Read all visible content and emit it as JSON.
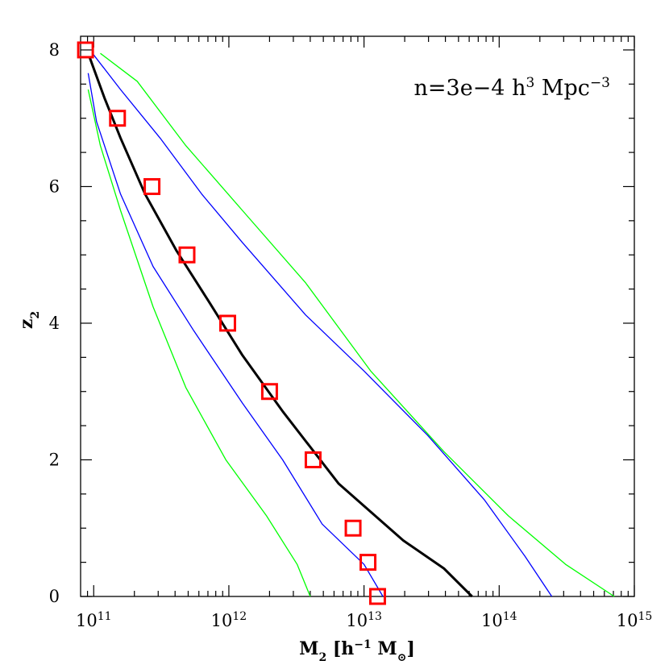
{
  "chart_data": {
    "type": "line",
    "xlabel": [
      {
        "text": "M"
      },
      {
        "text": "2",
        "script": "sub"
      },
      {
        "text": " [h"
      },
      {
        "text": "−1",
        "script": "sup"
      },
      {
        "text": " M"
      },
      {
        "text": "⊙",
        "script": "sub"
      },
      {
        "text": "]"
      }
    ],
    "ylabel": [
      {
        "text": "z"
      },
      {
        "text": "2",
        "script": "sub"
      }
    ],
    "annotation": [
      {
        "text": "n=3e−4 h"
      },
      {
        "text": "3",
        "script": "sup"
      },
      {
        "text": " Mpc"
      },
      {
        "text": "−3",
        "script": "sup"
      }
    ],
    "xscale": "log",
    "xlim": [
      80000000000,
      1000000000000000
    ],
    "ylim": [
      0,
      8.2
    ],
    "xticks": [
      {
        "value": 100000000000,
        "label": "10",
        "exponent": "11"
      },
      {
        "value": 1000000000000,
        "label": "10",
        "exponent": "12"
      },
      {
        "value": 10000000000000,
        "label": "10",
        "exponent": "13"
      },
      {
        "value": 100000000000000,
        "label": "10",
        "exponent": "14"
      },
      {
        "value": 1000000000000000,
        "label": "10",
        "exponent": "15"
      }
    ],
    "xminorticks": [
      90000000000,
      200000000000,
      300000000000,
      400000000000,
      500000000000,
      600000000000,
      700000000000,
      800000000000,
      900000000000,
      2000000000000,
      3000000000000,
      4000000000000,
      5000000000000,
      6000000000000,
      7000000000000,
      8000000000000,
      9000000000000,
      20000000000000,
      30000000000000,
      40000000000000,
      50000000000000,
      60000000000000,
      70000000000000,
      80000000000000,
      90000000000000,
      200000000000000,
      300000000000000,
      400000000000000,
      500000000000000,
      600000000000000,
      700000000000000,
      800000000000000,
      900000000000000
    ],
    "yticks": [
      0,
      2,
      4,
      6,
      8
    ],
    "yminorticks": [
      0.5,
      1,
      1.5,
      2.5,
      3,
      3.5,
      4.5,
      5,
      5.5,
      6.5,
      7,
      7.5
    ],
    "series": [
      {
        "color": "#00ff00",
        "width": 1.3,
        "x": [
          91000000000,
          112000000000,
          158000000000,
          275000000000,
          480000000000,
          950000000000,
          1900000000000,
          3200000000000,
          4000000000000
        ],
        "values": [
          7.42,
          6.6,
          5.65,
          4.24,
          3.06,
          2.0,
          1.18,
          0.47,
          0
        ]
      },
      {
        "color": "#0000ff",
        "width": 1.3,
        "x": [
          91000000000,
          105000000000,
          158000000000,
          275000000000,
          550000000000,
          1260000000000,
          2500000000000,
          4900000000000,
          10000000000000,
          13800000000000
        ],
        "values": [
          7.66,
          6.95,
          5.89,
          4.83,
          3.89,
          2.83,
          2.0,
          1.06,
          0.47,
          0
        ]
      },
      {
        "color": "#000000",
        "width": 3,
        "x": [
          93000000000,
          120000000000,
          158000000000,
          240000000000,
          410000000000,
          720000000000,
          1260000000000,
          2500000000000,
          6500000000000,
          19500000000000,
          39000000000000,
          63000000000000
        ],
        "values": [
          7.9,
          7.3,
          6.71,
          5.89,
          5.06,
          4.3,
          3.53,
          2.71,
          1.65,
          0.82,
          0.41,
          0
        ]
      },
      {
        "color": "#0000ff",
        "width": 1.3,
        "x": [
          98000000000,
          158000000000,
          310000000000,
          630000000000,
          1260000000000,
          3700000000000,
          10000000000000,
          29500000000000,
          78000000000000,
          155000000000000,
          245000000000000
        ],
        "values": [
          7.95,
          7.42,
          6.71,
          5.89,
          5.18,
          4.12,
          3.3,
          2.36,
          1.41,
          0.59,
          0
        ]
      },
      {
        "color": "#00ff00",
        "width": 1.3,
        "x": [
          112000000000,
          210000000000,
          480000000000,
          1260000000000,
          3700000000000,
          11200000000000,
          39000000000000,
          117000000000000,
          310000000000000,
          710000000000000
        ],
        "values": [
          7.95,
          7.54,
          6.6,
          5.65,
          4.59,
          3.3,
          2.12,
          1.18,
          0.47,
          0
        ]
      },
      {
        "color": "#ff0000",
        "marker": "square",
        "x": [
          87000000000,
          150000000000,
          270000000000,
          490000000000,
          980000000000,
          2000000000000,
          4200000000000,
          8300000000000,
          10700000000000,
          12600000000000
        ],
        "values": [
          8,
          7,
          6,
          5,
          4,
          3,
          2,
          1,
          0.5,
          0
        ]
      }
    ]
  }
}
